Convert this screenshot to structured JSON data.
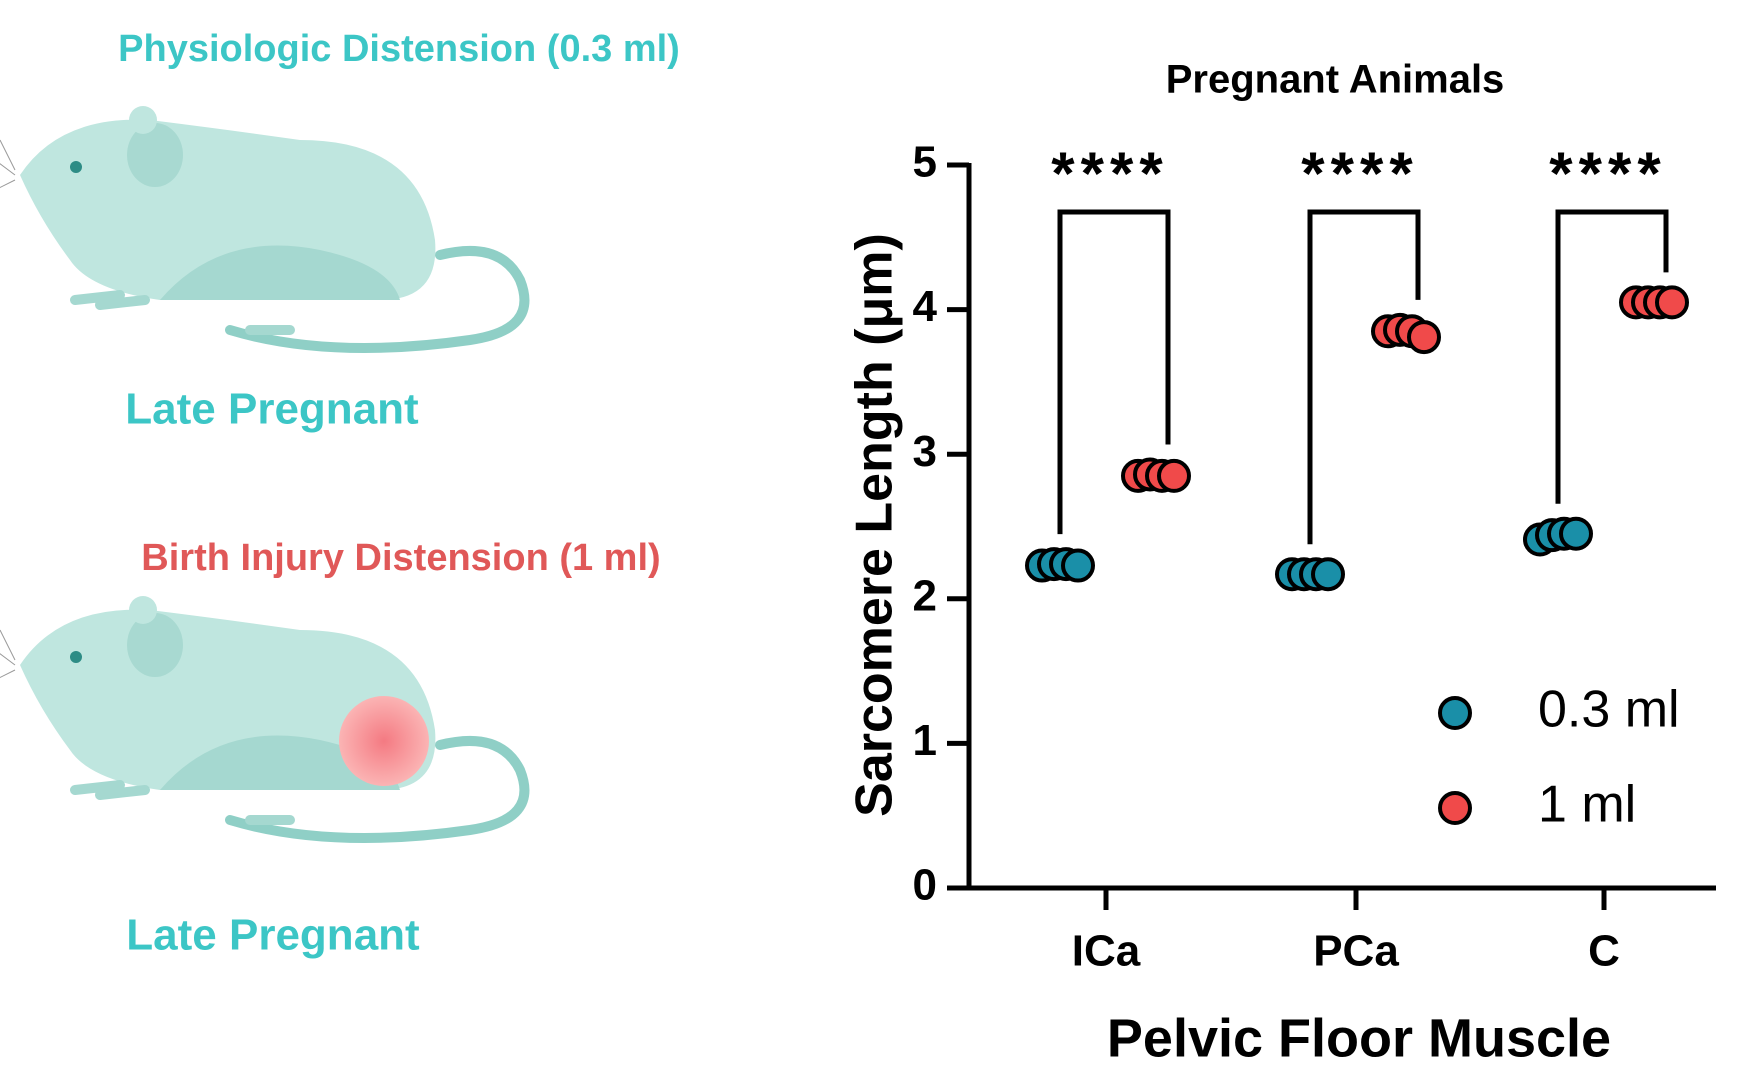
{
  "illustrations": [
    {
      "caption": "Physiologic Distension (0.3 ml)",
      "label": "Late Pregnant"
    },
    {
      "caption": "Birth Injury Distension (1 ml)",
      "label": "Late Pregnant"
    }
  ],
  "chart_data": {
    "type": "dot",
    "title": "Pregnant Animals",
    "xlabel": "Pelvic Floor Muscle",
    "ylabel": "Sarcomere Length (μm)",
    "categories": [
      "ICa",
      "PCa",
      "C"
    ],
    "series": [
      {
        "name": "0.3 ml",
        "color": "#1a8fa8",
        "values": [
          [
            2.23,
            2.24,
            2.24,
            2.23
          ],
          [
            2.17,
            2.17,
            2.17,
            2.17
          ],
          [
            2.41,
            2.44,
            2.45,
            2.45
          ]
        ]
      },
      {
        "name": "1 ml",
        "color": "#f04a4a",
        "values": [
          [
            2.85,
            2.86,
            2.85,
            2.85
          ],
          [
            3.85,
            3.86,
            3.85,
            3.81
          ],
          [
            4.05,
            4.05,
            4.05,
            4.05
          ]
        ]
      }
    ],
    "annotations": [
      "****",
      "****",
      "****"
    ],
    "ylim": [
      0,
      5
    ],
    "yticks": [
      0,
      1,
      2,
      3,
      4,
      5
    ],
    "legend": "lower right"
  }
}
